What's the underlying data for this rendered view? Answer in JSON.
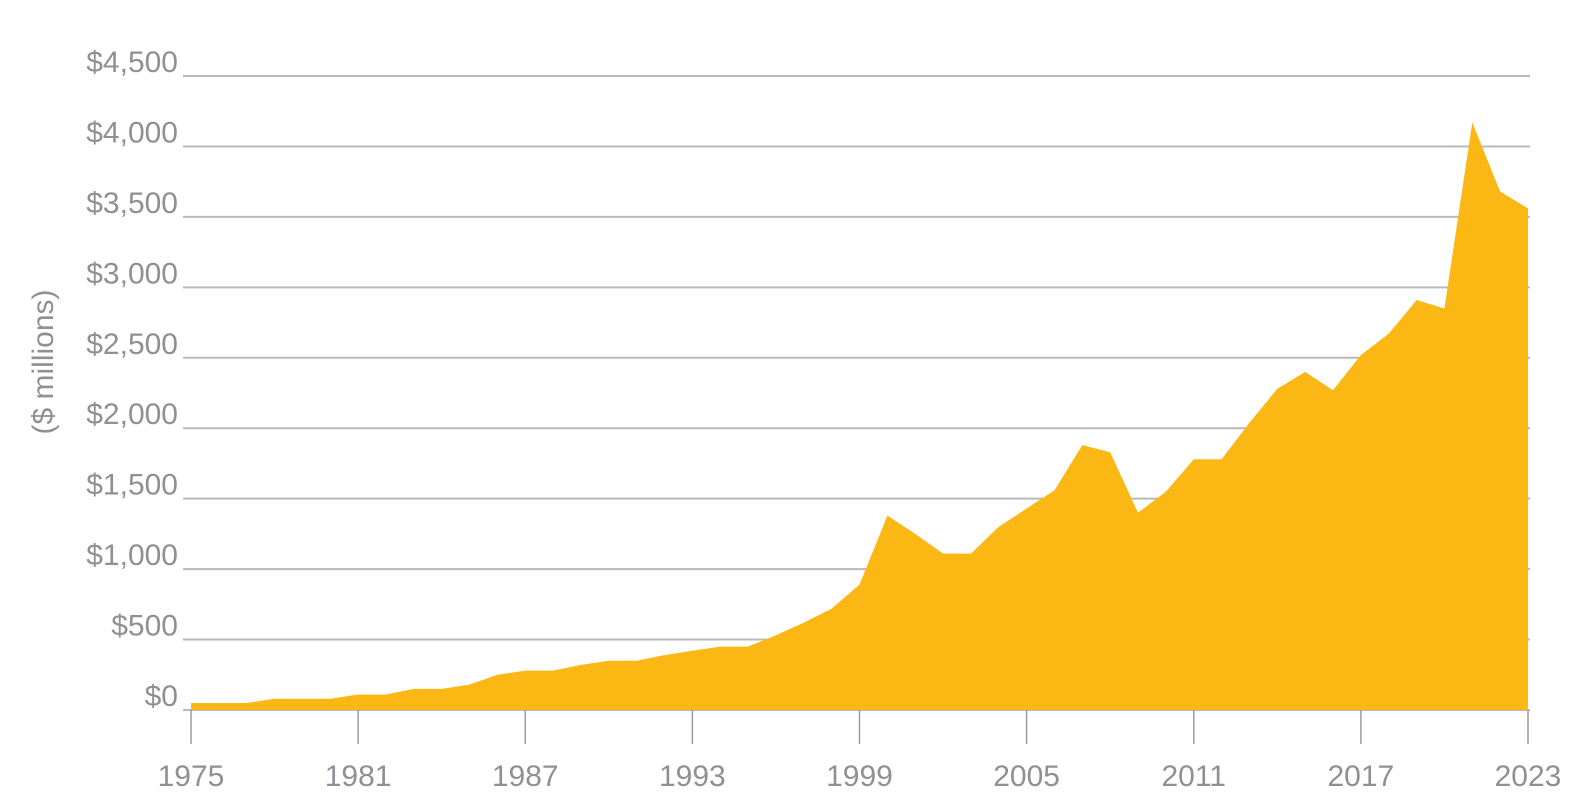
{
  "chart_data": {
    "type": "area",
    "title": "",
    "xlabel": "",
    "ylabel": "($ millions)",
    "color": "#FBB814",
    "gridline_color": "#B9BABD",
    "text_color": "#8F9095",
    "xlim": [
      1975,
      2023
    ],
    "ylim": [
      0,
      4500
    ],
    "grid": true,
    "legend": "none",
    "x_ticks": [
      1975,
      1981,
      1987,
      1993,
      1999,
      2005,
      2011,
      2017,
      2023
    ],
    "y_ticks": [
      {
        "value": 0,
        "label": "$0"
      },
      {
        "value": 500,
        "label": "$500"
      },
      {
        "value": 1000,
        "label": "$1,000"
      },
      {
        "value": 1500,
        "label": "$1,500"
      },
      {
        "value": 2000,
        "label": "$2,000"
      },
      {
        "value": 2500,
        "label": "$2,500"
      },
      {
        "value": 3000,
        "label": "$3,000"
      },
      {
        "value": 3500,
        "label": "$3,500"
      },
      {
        "value": 4000,
        "label": "$4,000"
      },
      {
        "value": 4500,
        "label": "$4,500"
      }
    ],
    "x": [
      1975,
      1976,
      1977,
      1978,
      1979,
      1980,
      1981,
      1982,
      1983,
      1984,
      1985,
      1986,
      1987,
      1988,
      1989,
      1990,
      1991,
      1992,
      1993,
      1994,
      1995,
      1996,
      1997,
      1998,
      1999,
      2000,
      2001,
      2002,
      2003,
      2004,
      2005,
      2006,
      2007,
      2008,
      2009,
      2010,
      2011,
      2012,
      2013,
      2014,
      2015,
      2016,
      2017,
      2018,
      2019,
      2020,
      2021,
      2022,
      2023
    ],
    "values": [
      50,
      50,
      50,
      80,
      80,
      80,
      110,
      110,
      150,
      150,
      180,
      250,
      280,
      280,
      320,
      350,
      350,
      390,
      420,
      450,
      450,
      530,
      620,
      720,
      890,
      1380,
      1250,
      1110,
      1110,
      1300,
      1430,
      1560,
      1880,
      1830,
      1400,
      1550,
      1780,
      1780,
      2040,
      2280,
      2400,
      2270,
      2520,
      2670,
      2910,
      2850,
      4170,
      3680,
      3560
    ]
  }
}
